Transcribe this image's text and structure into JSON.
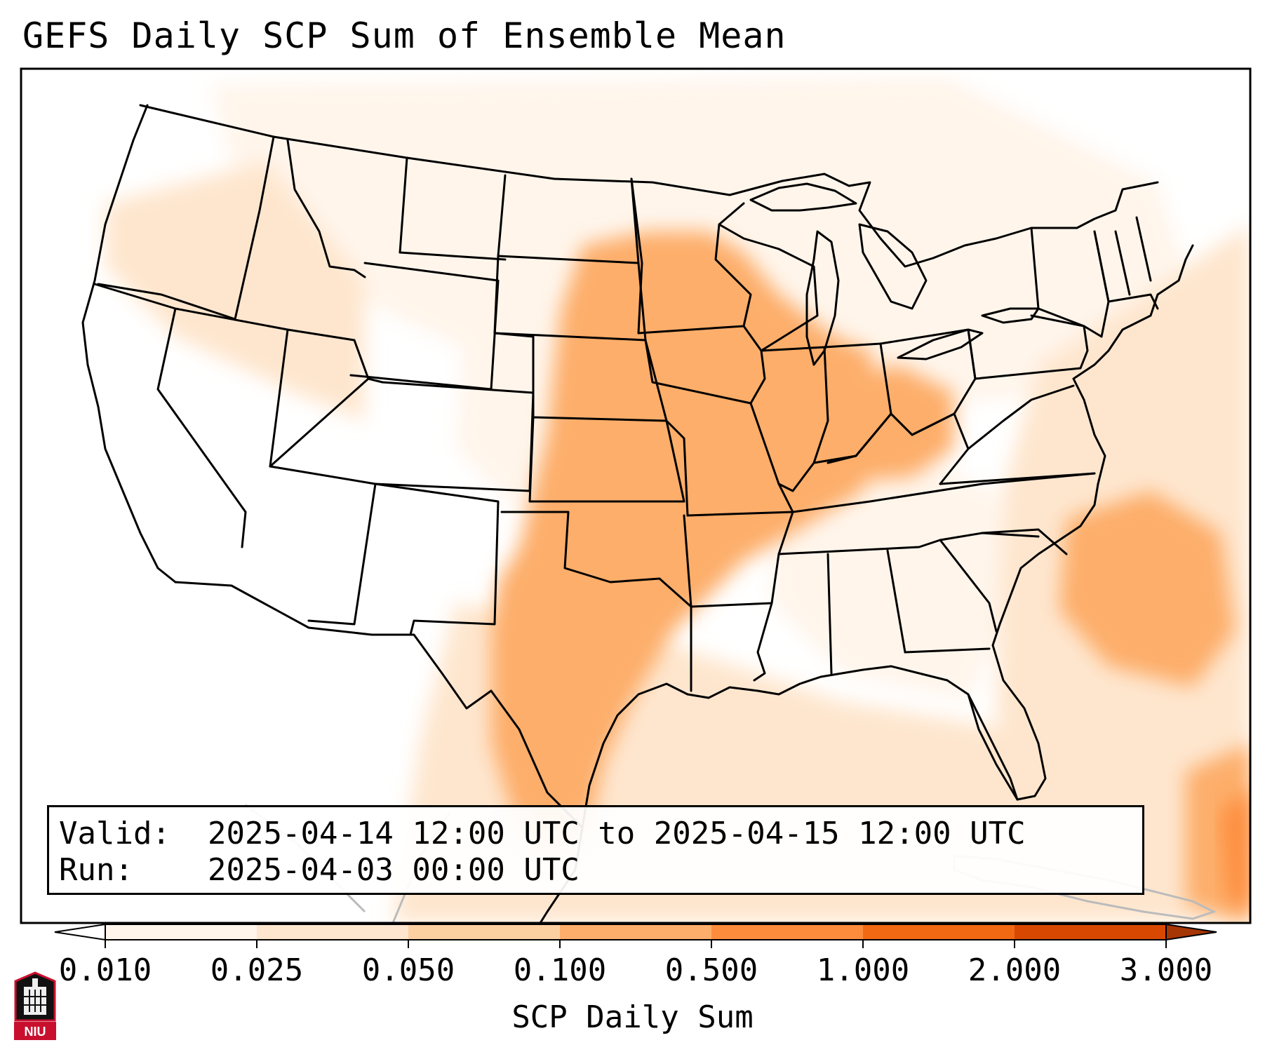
{
  "title": "GEFS Daily SCP Sum of Ensemble Mean",
  "info": {
    "valid_label": "Valid:",
    "valid_value": "2025-04-14 12:00 UTC to 2025-04-15 12:00 UTC",
    "run_label": "Run:",
    "run_value": "2025-04-03 00:00 UTC"
  },
  "colorbar": {
    "label": "SCP Daily Sum",
    "ticks": [
      "0.010",
      "0.025",
      "0.050",
      "0.100",
      "0.500",
      "1.000",
      "2.000",
      "3.000"
    ],
    "colors": [
      "#fff5eb",
      "#fee6ce",
      "#fdd0a2",
      "#fdae6b",
      "#fd8d3c",
      "#f16913",
      "#d94801",
      "#a63603"
    ],
    "under_color": "#ffffff",
    "over_color": "#a63603"
  },
  "logo": {
    "text": "NIU",
    "colors": {
      "red": "#c8102e",
      "black": "#111111"
    }
  },
  "map": {
    "region": "Contiguous United States",
    "field": "SCP daily sum, ensemble mean"
  }
}
